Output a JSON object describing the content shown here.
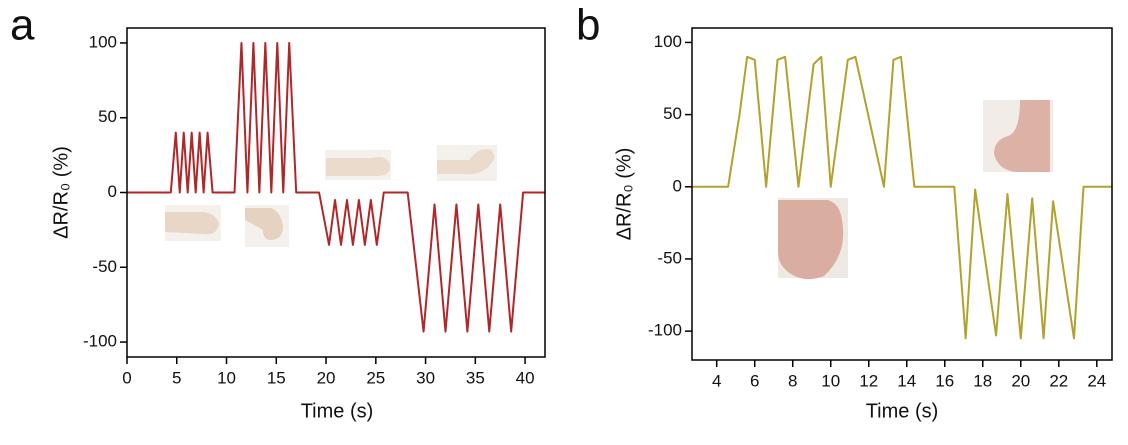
{
  "chart_data": [
    {
      "type": "line",
      "label": "a",
      "xlabel": "Time (s)",
      "ylabel": "ΔR/R₀ (%)",
      "x": [
        0,
        4.4,
        4.9,
        5.3,
        5.7,
        6.1,
        6.5,
        6.9,
        7.3,
        7.7,
        8.1,
        8.6,
        10.8,
        11.5,
        12.1,
        12.7,
        13.3,
        13.9,
        14.5,
        15.1,
        15.7,
        16.3,
        17.0,
        19.3,
        20.3,
        20.9,
        21.5,
        22.1,
        22.7,
        23.3,
        23.9,
        24.5,
        25.1,
        25.8,
        28.2,
        29.8,
        30.9,
        32.0,
        33.1,
        34.2,
        35.3,
        36.4,
        37.5,
        38.6,
        39.8,
        42
      ],
      "values": [
        0,
        0,
        40,
        0,
        40,
        0,
        40,
        0,
        40,
        0,
        40,
        0,
        0,
        100,
        0,
        100,
        0,
        100,
        0,
        100,
        0,
        100,
        0,
        0,
        -35,
        -5,
        -35,
        -5,
        -35,
        -5,
        -35,
        -5,
        -35,
        0,
        0,
        -93,
        -8,
        -93,
        -8,
        -93,
        -8,
        -93,
        -8,
        -93,
        0,
        0
      ],
      "color": "#b0272a",
      "xlim": [
        0,
        42
      ],
      "xticks": [
        0,
        5,
        10,
        15,
        20,
        25,
        30,
        35,
        40
      ],
      "ylim": [
        -110,
        110
      ],
      "yticks": [
        -100,
        -50,
        0,
        50,
        100
      ]
    },
    {
      "type": "line",
      "label": "b",
      "xlabel": "Time (s)",
      "ylabel": "ΔR/R₀ (%)",
      "x": [
        2.7,
        4.6,
        5.2,
        5.6,
        6.0,
        6.6,
        7.2,
        7.6,
        8.3,
        9.1,
        9.5,
        10.0,
        10.9,
        11.3,
        12.8,
        13.3,
        13.7,
        14.4,
        16.5,
        17.1,
        17.6,
        18.7,
        19.3,
        20.0,
        20.6,
        21.2,
        21.7,
        22.8,
        23.3,
        24.8
      ],
      "values": [
        0,
        0,
        50,
        90,
        88,
        0,
        88,
        90,
        0,
        85,
        90,
        0,
        88,
        90,
        0,
        88,
        90,
        0,
        0,
        -105,
        -2,
        -103,
        -5,
        -105,
        -8,
        -105,
        -10,
        -105,
        0,
        0
      ],
      "color": "#b3a12e",
      "xlim": [
        2.7,
        24.8
      ],
      "xticks": [
        4,
        6,
        8,
        10,
        12,
        14,
        16,
        18,
        20,
        22,
        24
      ],
      "ylim": [
        -120,
        110
      ],
      "yticks": [
        -100,
        -50,
        0,
        50,
        100
      ]
    }
  ]
}
